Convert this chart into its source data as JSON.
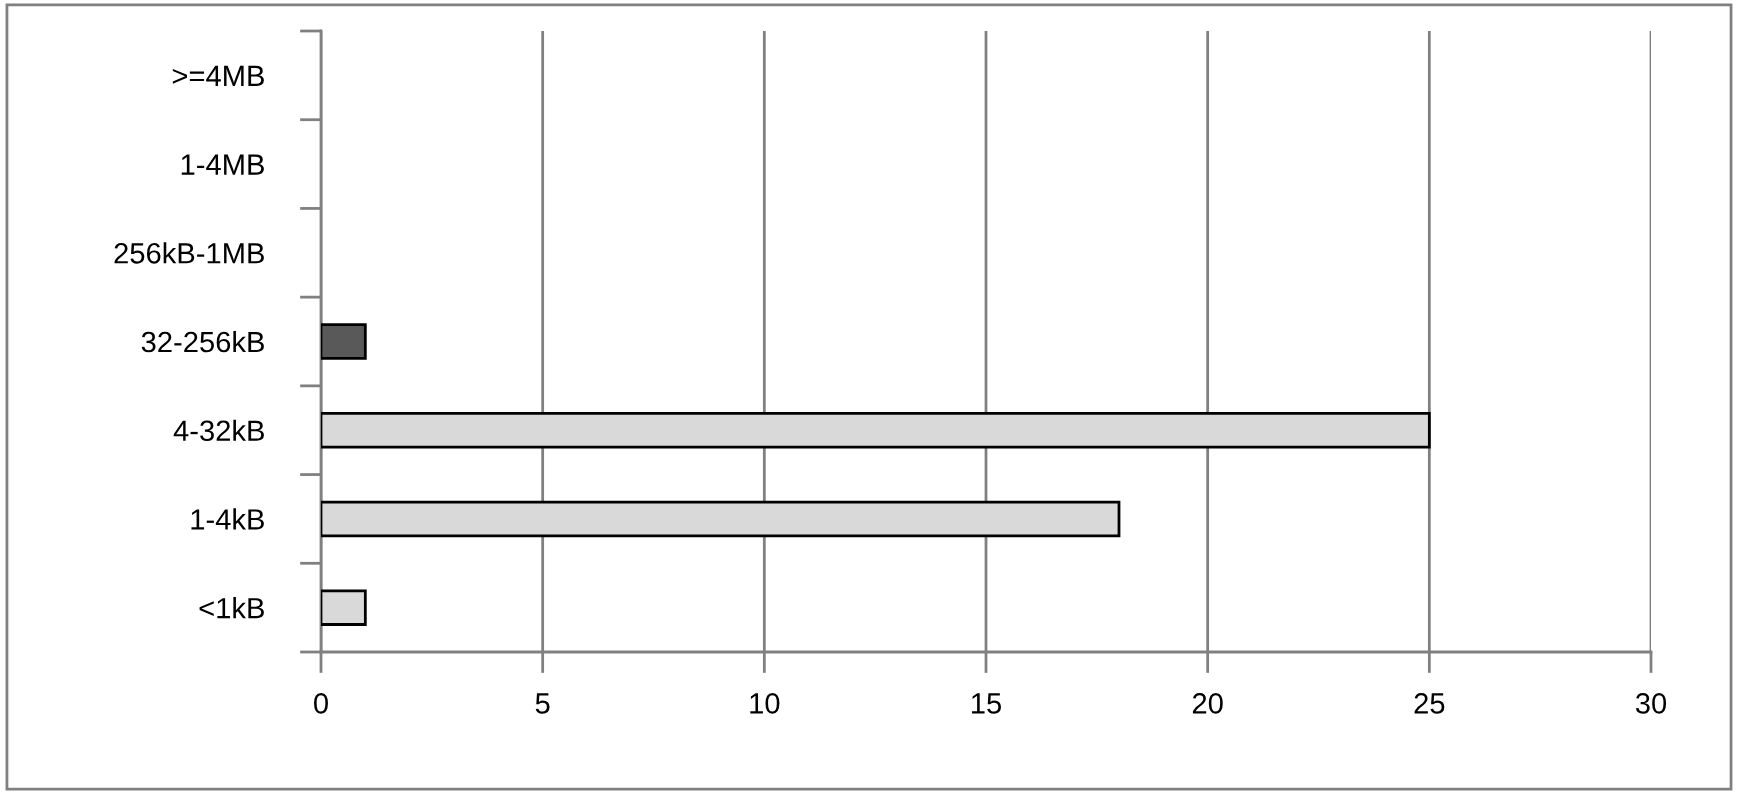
{
  "chart_data": {
    "type": "bar",
    "orientation": "horizontal",
    "categories": [
      ">=4MB",
      "1-4MB",
      "256kB-1MB",
      "32-256kB",
      "4-32kB",
      "1-4kB",
      "<1kB"
    ],
    "values": [
      0,
      0,
      0,
      1,
      25,
      18,
      1
    ],
    "colors": [
      "#d9d9d9",
      "#d9d9d9",
      "#d9d9d9",
      "#595959",
      "#d9d9d9",
      "#d9d9d9",
      "#d9d9d9"
    ],
    "xlim": [
      0,
      30
    ],
    "xticks": [
      0,
      5,
      10,
      15,
      20,
      25,
      30
    ],
    "grid": "x",
    "legend": false
  }
}
